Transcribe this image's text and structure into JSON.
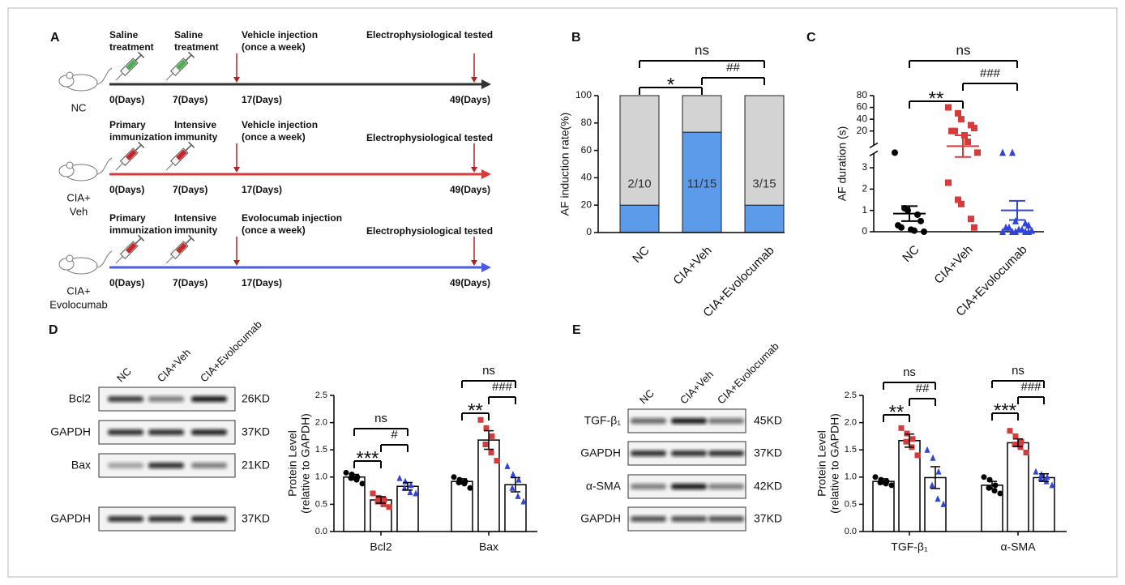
{
  "panels": [
    "A",
    "B",
    "C",
    "D",
    "E"
  ],
  "timeline": {
    "rows": [
      {
        "group": [
          "NC"
        ],
        "color": "#333333",
        "steps": [
          [
            "Saline",
            "treatment"
          ],
          [
            "Saline",
            "treatment"
          ],
          [
            "Vehicle injection",
            "(once a week)"
          ],
          [
            "Electrophysiological tested"
          ]
        ],
        "days": [
          "0(Days)",
          "7(Days)",
          "17(Days)",
          "49(Days)"
        ]
      },
      {
        "group": [
          "CIA+",
          "Veh"
        ],
        "color": "#d63b3b",
        "steps": [
          [
            "Primary",
            "immunization"
          ],
          [
            "Intensive",
            "immunity"
          ],
          [
            "Vehicle injection",
            "(once a week)"
          ],
          [
            "Electrophysiological tested"
          ]
        ],
        "days": [
          "0(Days)",
          "7(Days)",
          "17(Days)",
          "49(Days)"
        ]
      },
      {
        "group": [
          "CIA+",
          "Evolocumab"
        ],
        "color": "#4a5de0",
        "steps": [
          [
            "Primary",
            "immunization"
          ],
          [
            "Intensive",
            "immunity"
          ],
          [
            "Evolocumab injection",
            "(once a week)"
          ],
          [
            "Electrophysiological tested"
          ]
        ],
        "days": [
          "0(Days)",
          "7(Days)",
          "17(Days)",
          "49(Days)"
        ]
      }
    ]
  },
  "blots": [
    {
      "lanes": [
        "NC",
        "CIA+Veh",
        "CIA+Evolocumab"
      ],
      "rows": [
        {
          "label": "Bcl2",
          "size": "26KD"
        },
        {
          "label": "GAPDH",
          "size": "37KD"
        },
        {
          "label": "Bax",
          "size": "21KD"
        },
        {
          "label": "GAPDH",
          "size": "37KD"
        }
      ]
    },
    {
      "lanes": [
        "NC",
        "CIA+Veh",
        "CIA+Evolocumab"
      ],
      "rows": [
        {
          "label": "TGF-β₁",
          "size": "45KD"
        },
        {
          "label": "GAPDH",
          "size": "37KD"
        },
        {
          "label": "α-SMA",
          "size": "42KD"
        },
        {
          "label": "GAPDH",
          "size": "37KD"
        }
      ]
    }
  ],
  "chart_data": [
    {
      "type": "bar",
      "stacked": true,
      "ylabel": "AF induction rate(%)",
      "categories": [
        "NC",
        "CIA+Veh",
        "CIA+Evolocumab"
      ],
      "series": [
        {
          "color": "#5b9bea",
          "values": [
            20,
            73.3,
            20
          ]
        },
        {
          "color": "#d3d3d3",
          "values": [
            80,
            26.7,
            80
          ]
        }
      ],
      "bar_labels": [
        "2/10",
        "11/15",
        "3/15"
      ],
      "ylim": [
        0,
        100
      ],
      "yticks": [
        0,
        20,
        40,
        60,
        80,
        100
      ],
      "significance": [
        "*",
        "##",
        "ns"
      ]
    },
    {
      "type": "scatter",
      "ylabel": "AF duration (s)",
      "categories": [
        "NC",
        "CIA+Veh",
        "CIA+Evolocumab"
      ],
      "series": [
        {
          "color": "#000000",
          "marker": "circle",
          "values": [
            10,
            1.1,
            1.0,
            0.8,
            0.5,
            0.3,
            0.2,
            0.1,
            0.05,
            0
          ],
          "mean": 0.85,
          "sem": 0.35
        },
        {
          "color": "#d63b3b",
          "marker": "square",
          "values": [
            60,
            50,
            40,
            30,
            25,
            20,
            20,
            18,
            15,
            10,
            2.3,
            1.5,
            1.3,
            0.6,
            0.2
          ],
          "mean": 13,
          "sem": 5
        },
        {
          "color": "#2f44d8",
          "marker": "triangle",
          "values": [
            10,
            10,
            0.5,
            0.4,
            0.3,
            0.2,
            0.2,
            0.1,
            0.1,
            0.05,
            0,
            0,
            0,
            0,
            0
          ],
          "mean": 1.0,
          "sem": 0.45
        }
      ],
      "ylim": [
        0,
        80
      ],
      "ybreak": [
        3,
        20
      ],
      "yticks": [
        0,
        1,
        2,
        3,
        20,
        40,
        60,
        80
      ],
      "significance": [
        "**",
        "###",
        "ns"
      ]
    },
    {
      "type": "bar",
      "ylabel": [
        "Protein Level",
        "(relative to GAPDH)"
      ],
      "categories": [
        "Bcl2",
        "Bax"
      ],
      "series": [
        {
          "color": "#000000",
          "marker": "circle",
          "values": [
            1.0,
            0.92
          ],
          "errors": [
            0.05,
            0.05
          ],
          "points": [
            [
              1.08,
              1.05,
              1.0,
              0.98,
              0.95,
              0.88
            ],
            [
              1.0,
              0.95,
              0.92,
              0.9,
              0.88,
              0.8
            ]
          ]
        },
        {
          "color": "#d63b3b",
          "marker": "square",
          "values": [
            0.58,
            1.68
          ],
          "errors": [
            0.06,
            0.17
          ],
          "points": [
            [
              0.7,
              0.62,
              0.58,
              0.55,
              0.5,
              0.45
            ],
            [
              2.05,
              1.9,
              1.75,
              1.6,
              1.45,
              1.3
            ]
          ]
        },
        {
          "color": "#2f44d8",
          "marker": "triangle",
          "values": [
            0.83,
            0.86
          ],
          "errors": [
            0.07,
            0.13
          ],
          "points": [
            [
              0.98,
              0.92,
              0.85,
              0.8,
              0.72,
              0.7
            ],
            [
              1.2,
              1.05,
              0.95,
              0.8,
              0.65,
              0.55
            ]
          ]
        }
      ],
      "ylim": [
        0,
        2.5
      ],
      "yticks": [
        {
          "value": 0,
          "label": "0.0"
        },
        0.5,
        {
          "value": 1,
          "label": "1.0"
        },
        1.5,
        {
          "value": 2,
          "label": "2.0"
        },
        2.5
      ],
      "significance": [
        [
          "***",
          "#",
          "ns"
        ],
        [
          "**",
          "###",
          "ns"
        ]
      ]
    },
    {
      "type": "bar",
      "ylabel": [
        "Protein Level",
        "(relative to GAPDH)"
      ],
      "categories": [
        "TGF-β₁",
        "α-SMA"
      ],
      "series": [
        {
          "color": "#000000",
          "marker": "circle",
          "values": [
            0.92,
            0.85
          ],
          "errors": [
            0.05,
            0.07
          ],
          "points": [
            [
              1.0,
              0.95,
              0.92,
              0.9,
              0.88,
              0.85
            ],
            [
              1.0,
              0.95,
              0.85,
              0.8,
              0.75,
              0.7
            ]
          ]
        },
        {
          "color": "#d63b3b",
          "marker": "square",
          "values": [
            1.67,
            1.63
          ],
          "errors": [
            0.12,
            0.07
          ],
          "points": [
            [
              1.9,
              1.8,
              1.7,
              1.65,
              1.55,
              1.4
            ],
            [
              1.85,
              1.75,
              1.65,
              1.6,
              1.55,
              1.45
            ]
          ]
        },
        {
          "color": "#2f44d8",
          "marker": "triangle",
          "values": [
            0.99,
            0.99
          ],
          "errors": [
            0.2,
            0.07
          ],
          "points": [
            [
              1.5,
              1.35,
              1.1,
              0.85,
              0.6,
              0.5
            ],
            [
              1.1,
              1.05,
              1.0,
              0.98,
              0.92,
              0.85
            ]
          ]
        }
      ],
      "ylim": [
        0,
        2.5
      ],
      "yticks": [
        {
          "value": 0,
          "label": "0.0"
        },
        0.5,
        {
          "value": 1,
          "label": "1.0"
        },
        1.5,
        {
          "value": 2,
          "label": "2.0"
        },
        2.5
      ],
      "significance": [
        [
          "**",
          "##",
          "ns"
        ],
        [
          "***",
          "###",
          "ns"
        ]
      ]
    }
  ]
}
